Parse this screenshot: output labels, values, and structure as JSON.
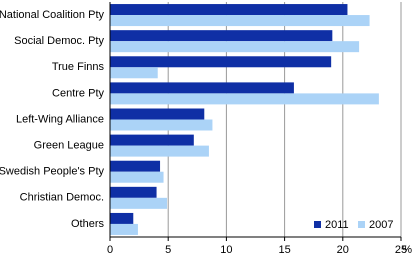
{
  "chart_data": {
    "type": "hbar",
    "categories": [
      "National Coalition Pty",
      "Social Democ. Pty",
      "True Finns",
      "Centre Pty",
      "Left-Wing Alliance",
      "Green League",
      "Swedish People's Pty",
      "Christian Democ.",
      "Others"
    ],
    "series": [
      {
        "name": "2011",
        "color": "#0f2fa5",
        "values": [
          20.4,
          19.1,
          19.0,
          15.8,
          8.1,
          7.2,
          4.3,
          4.0,
          2.0
        ]
      },
      {
        "name": "2007",
        "color": "#abd3f7",
        "values": [
          22.3,
          21.4,
          4.1,
          23.1,
          8.8,
          8.5,
          4.6,
          4.9,
          2.4
        ]
      }
    ],
    "x_label": "%",
    "xlim": [
      0,
      25
    ],
    "xticks": [
      0,
      5,
      10,
      15,
      20,
      25
    ],
    "grid": true,
    "legend": "lower right"
  }
}
